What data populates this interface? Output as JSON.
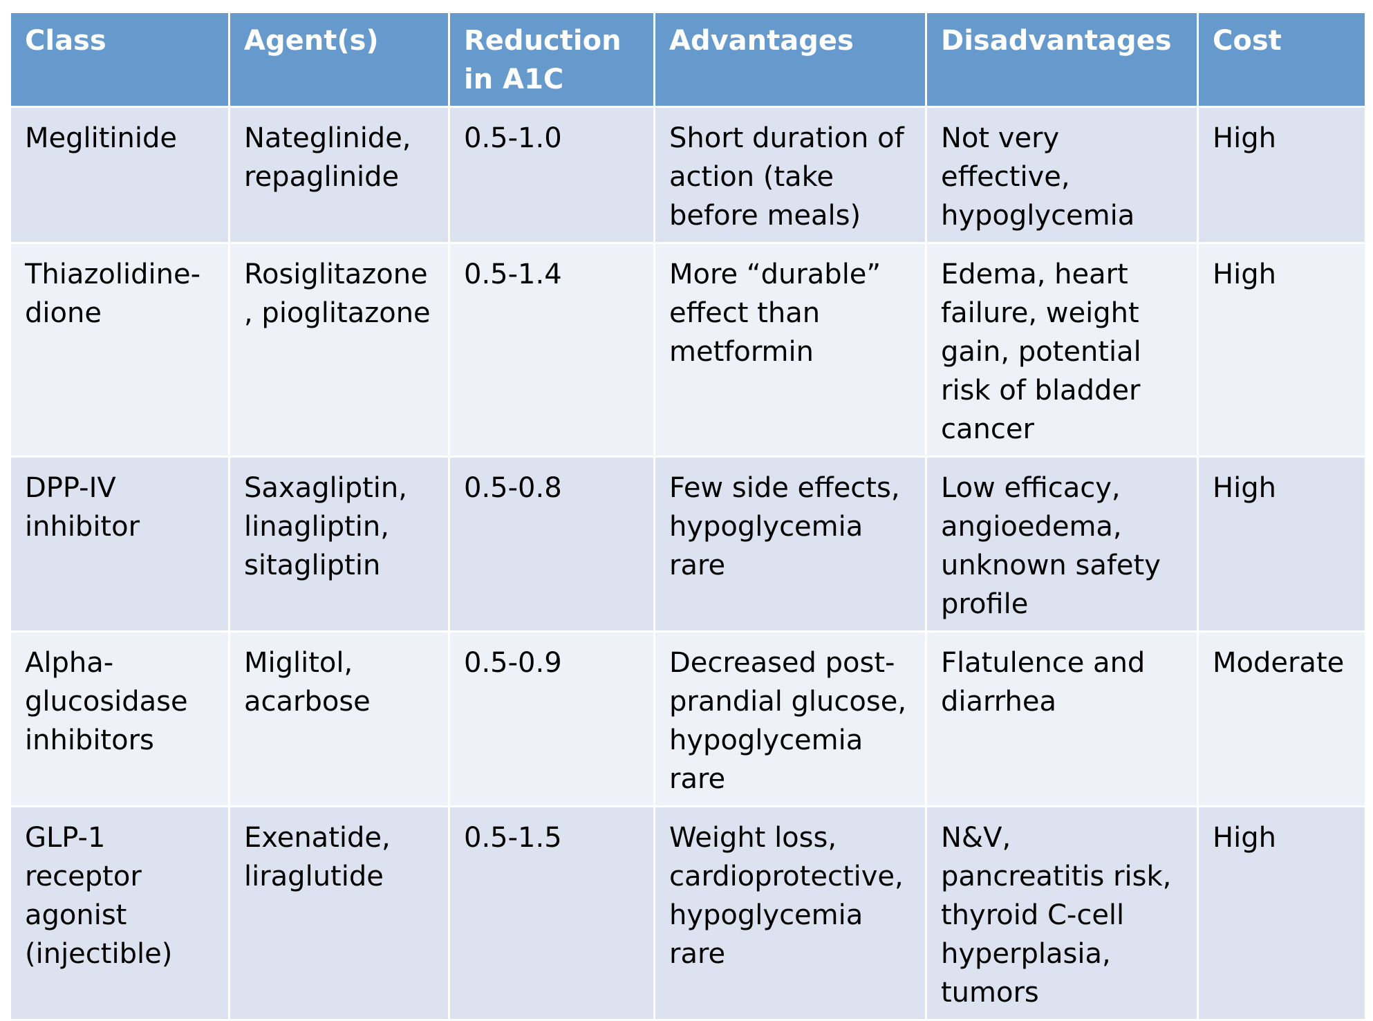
{
  "table": {
    "headers": [
      "Class",
      "Agent(s)",
      "Reduction in A1C",
      "Advantages",
      "Disadvantages",
      "Cost"
    ],
    "rows": [
      [
        "Meglitinide",
        "Nateglinide, repaglinide",
        "0.5-1.0",
        "Short duration of action (take before meals)",
        "Not very effective, hypoglycemia",
        "High"
      ],
      [
        "Thiazolidine-dione",
        "Rosiglitazone, pioglitazone",
        "0.5-1.4",
        "More “durable” effect than metformin",
        "Edema, heart failure, weight gain, potential risk of bladder cancer",
        "High"
      ],
      [
        "DPP-IV inhibitor",
        "Saxagliptin, linagliptin, sitagliptin",
        "0.5-0.8",
        "Few side effects, hypoglycemia rare",
        "Low efficacy, angioedema, unknown safety profile",
        "High"
      ],
      [
        "Alpha-glucosidase inhibitors",
        "Miglitol, acarbose",
        "0.5-0.9",
        "Decreased post-prandial glucose, hypoglycemia rare",
        "Flatulence and diarrhea",
        "Moderate"
      ],
      [
        "GLP-1 receptor agonist (injectible)",
        "Exenatide, liraglutide",
        "0.5-1.5",
        "Weight loss, cardioprotective, hypoglycemia rare",
        "N&V, pancreatitis risk, thyroid C-cell hyperplasia, tumors",
        "High"
      ]
    ]
  },
  "colors": {
    "header_bg": "#6699cc",
    "row_odd_bg": "#dce2ef",
    "row_even_bg": "#eef1f8",
    "border": "#ffffff"
  }
}
